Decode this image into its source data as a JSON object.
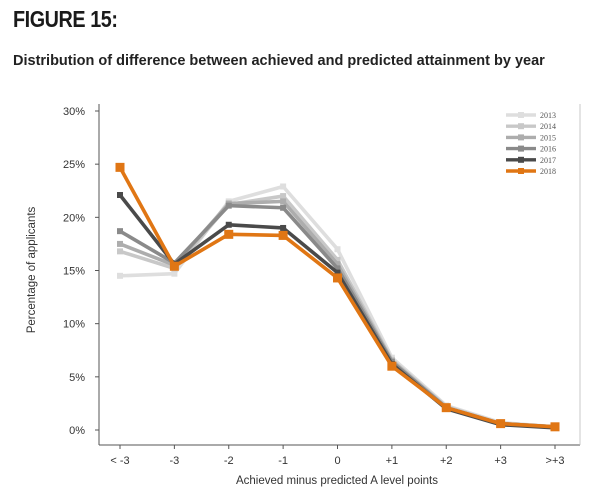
{
  "figure_label": "FIGURE 15:",
  "subtitle": "Distribution of difference between achieved and predicted attainment by year",
  "chart_data": {
    "type": "line",
    "categories": [
      "< -3",
      "-3",
      "-2",
      "-1",
      "0",
      "+1",
      "+2",
      "+3",
      ">+3"
    ],
    "xlabel": "Achieved minus predicted A level points",
    "ylabel": "Percentage of applicants",
    "ylim": [
      0,
      30
    ],
    "yticks": [
      "0%",
      "5%",
      "10%",
      "15%",
      "20%",
      "25%",
      "30%"
    ],
    "grid": false,
    "legend_position": "top-right",
    "series": [
      {
        "name": "2013",
        "color": "#dedede",
        "values": [
          14.5,
          14.7,
          21.5,
          22.9,
          17.0,
          6.8,
          2.3,
          0.7,
          0.3
        ]
      },
      {
        "name": "2014",
        "color": "#c8c8c8",
        "values": [
          16.8,
          15.2,
          21.2,
          22.0,
          16.0,
          6.6,
          2.2,
          0.6,
          0.3
        ]
      },
      {
        "name": "2015",
        "color": "#adadad",
        "values": [
          17.5,
          15.5,
          21.3,
          21.5,
          15.6,
          6.5,
          2.1,
          0.6,
          0.3
        ]
      },
      {
        "name": "2016",
        "color": "#8a8a8a",
        "values": [
          18.7,
          15.7,
          21.1,
          20.9,
          15.2,
          6.4,
          2.1,
          0.6,
          0.3
        ]
      },
      {
        "name": "2017",
        "color": "#4a4a4a",
        "values": [
          22.1,
          15.6,
          19.3,
          19.0,
          14.8,
          6.2,
          2.0,
          0.5,
          0.2
        ]
      },
      {
        "name": "2018",
        "color": "#e07614",
        "values": [
          24.7,
          15.4,
          18.4,
          18.3,
          14.3,
          6.0,
          2.1,
          0.6,
          0.3
        ]
      }
    ]
  }
}
